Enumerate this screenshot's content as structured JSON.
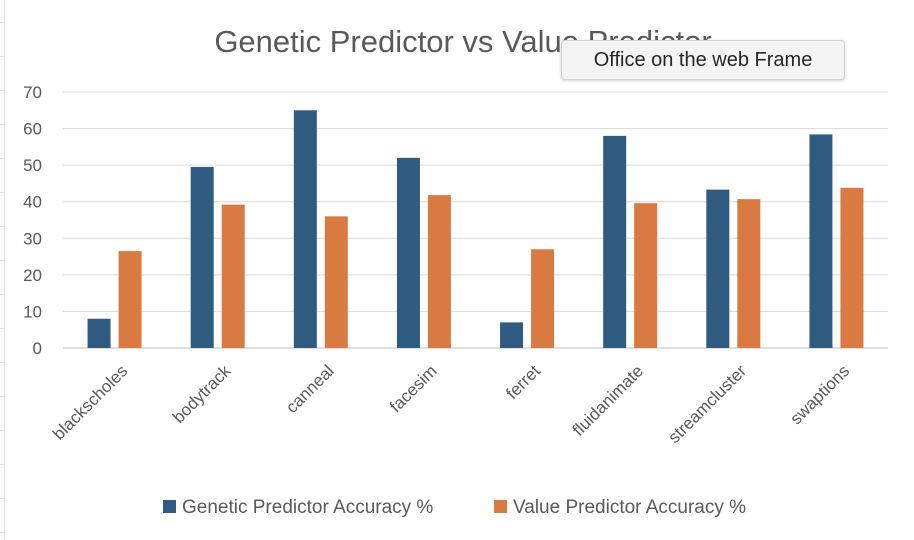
{
  "tooltip": {
    "text": "Office on the web Frame"
  },
  "chart_data": {
    "type": "bar",
    "title": "Genetic Predictor vs Value Predictor",
    "xlabel": "",
    "ylabel": "",
    "categories": [
      "blackscholes",
      "bodytrack",
      "canneal",
      "facesim",
      "ferret",
      "fluidanimate",
      "streamcluster",
      "swaptions"
    ],
    "series": [
      {
        "name": "Genetic Predictor Accuracy %",
        "color": "#2e5b7f",
        "values": [
          8,
          49.5,
          65,
          52,
          7,
          58,
          43.3,
          58.4
        ]
      },
      {
        "name": "Value Predictor Accuracy %",
        "color": "#d97a42",
        "values": [
          26.5,
          39.2,
          36,
          41.8,
          27,
          39.6,
          40.7,
          43.8
        ]
      }
    ],
    "ylim": [
      0,
      70
    ],
    "yticks": [
      "0",
      "10",
      "20",
      "30",
      "40",
      "50",
      "60",
      "70"
    ],
    "grid": true,
    "legend": "bottom"
  }
}
